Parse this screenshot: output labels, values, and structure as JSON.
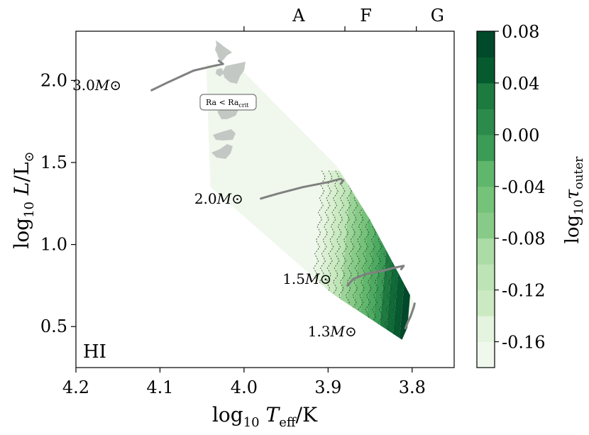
{
  "chart_data": {
    "type": "heatmap",
    "panel_label": "HI",
    "xlabel": "log10 Teff/K",
    "ylabel": "log10 L/L⊙",
    "colorbar_label": "log10 τouter",
    "xlim": [
      4.2,
      3.75
    ],
    "ylim": [
      0.25,
      2.3
    ],
    "x_ticks": [
      4.2,
      4.1,
      4.0,
      3.9,
      3.8
    ],
    "x_tick_labels": [
      "4.2",
      "4.1",
      "4.0",
      "3.9",
      "3.8"
    ],
    "y_ticks": [
      0.5,
      1.0,
      1.5,
      2.0
    ],
    "y_tick_labels": [
      "0.5",
      "1.0",
      "1.5",
      "2.0"
    ],
    "spectral_classes": [
      {
        "label": "A",
        "logTeff": 3.935
      },
      {
        "label": "F",
        "logTeff": 3.855
      },
      {
        "label": "G",
        "logTeff": 3.77
      }
    ],
    "spectral_boundaries": [
      4.0,
      3.88,
      3.795
    ],
    "colorbar": {
      "min": -0.18,
      "max": 0.08,
      "step": 0.02,
      "ticks": [
        0.08,
        0.04,
        0.0,
        -0.04,
        -0.08,
        -0.12,
        -0.16
      ],
      "tick_labels": [
        "0.08",
        "0.04",
        "0.00",
        "-0.04",
        "-0.08",
        "-0.12",
        "-0.16"
      ],
      "colors_low_to_high": [
        "#f0f8ed",
        "#e4f4de",
        "#d8efd0",
        "#cbeac2",
        "#bce4b5",
        "#acdca6",
        "#9ad497",
        "#88cb88",
        "#75c279",
        "#60b76c",
        "#4daa60",
        "#3b9c55",
        "#2c8b4a",
        "#1d7b40",
        "#0f6b37",
        "#055b2e",
        "#00492a"
      ]
    },
    "region": {
      "description": "main-sequence instability region colored by log10 tau_outer",
      "points": [
        [
          4.045,
          2.1
        ],
        [
          4.0,
          2.05
        ],
        [
          3.89,
          1.48
        ],
        [
          3.85,
          1.15
        ],
        [
          3.795,
          0.62
        ],
        [
          3.812,
          0.42
        ],
        [
          3.895,
          0.7
        ],
        [
          4.04,
          1.35
        ]
      ]
    },
    "annotation": "Ra < Ra_crit",
    "annotation_parts": {
      "left": "Ra < Ra",
      "sub": "crit"
    },
    "tracks": [
      {
        "mass": 3.0,
        "label_num": "3.0",
        "label_unit": "M⊙",
        "logTeff": [
          4.11,
          4.09,
          4.06,
          4.035,
          4.025,
          4.03
        ],
        "logL": [
          1.94,
          1.99,
          2.06,
          2.09,
          2.1,
          2.12
        ]
      },
      {
        "mass": 2.0,
        "label_num": "2.0",
        "label_unit": "M⊙",
        "logTeff": [
          3.98,
          3.96,
          3.93,
          3.9,
          3.885,
          3.882,
          3.885
        ],
        "logL": [
          1.28,
          1.31,
          1.35,
          1.38,
          1.4,
          1.39,
          1.37
        ]
      },
      {
        "mass": 1.5,
        "label_num": "1.5",
        "label_unit": "M⊙",
        "logTeff": [
          3.877,
          3.87,
          3.855,
          3.835,
          3.82,
          3.81,
          3.813
        ],
        "logL": [
          0.75,
          0.79,
          0.82,
          0.84,
          0.86,
          0.87,
          0.85
        ]
      },
      {
        "mass": 1.3,
        "label_num": "1.3",
        "label_unit": "M⊙",
        "logTeff": [
          3.808,
          3.805,
          3.802,
          3.8,
          3.798,
          3.797
        ],
        "logL": [
          0.49,
          0.53,
          0.56,
          0.59,
          0.62,
          0.64
        ]
      }
    ]
  }
}
